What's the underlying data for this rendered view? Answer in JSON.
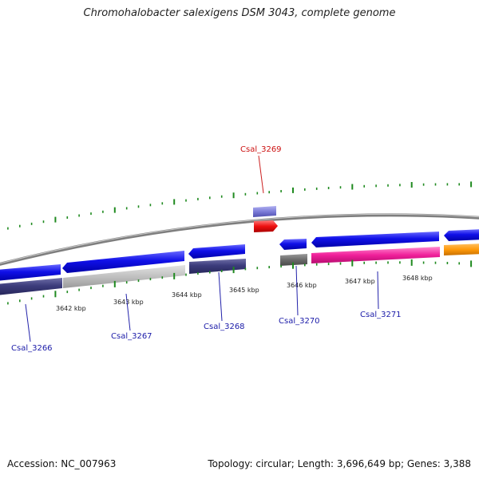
{
  "title": "Chromohalobacter salexigens DSM 3043, complete genome",
  "footer": {
    "accession": "Accession: NC_007963",
    "summary": "Topology: circular; Length: 3,696,649 bp; Genes: 3,388"
  },
  "colors": {
    "backbone": "#8a8a8a",
    "minor_tick": "#1f8a1f",
    "gene_label_default": "#1a1aa8",
    "gene_label_highlight": "#cc1111",
    "leader_default": "#2222aa",
    "leader_highlight": "#cc2222"
  },
  "axis": {
    "tick_labels": [
      {
        "kbp": 3642,
        "label": "3642 kbp"
      },
      {
        "kbp": 3643,
        "label": "3643 kbp"
      },
      {
        "kbp": 3644,
        "label": "3644 kbp"
      },
      {
        "kbp": 3645,
        "label": "3645 kbp"
      },
      {
        "kbp": 3646,
        "label": "3646 kbp"
      },
      {
        "kbp": 3647,
        "label": "3647 kbp"
      },
      {
        "kbp": 3648,
        "label": "3648 kbp"
      }
    ]
  },
  "genes": [
    {
      "label": "Csal_3266",
      "highlight": false
    },
    {
      "label": "Csal_3267",
      "highlight": false
    },
    {
      "label": "Csal_3268",
      "highlight": false
    },
    {
      "label": "Csal_3269",
      "highlight": true
    },
    {
      "label": "Csal_3270",
      "highlight": false
    },
    {
      "label": "Csal_3271",
      "highlight": false
    }
  ]
}
